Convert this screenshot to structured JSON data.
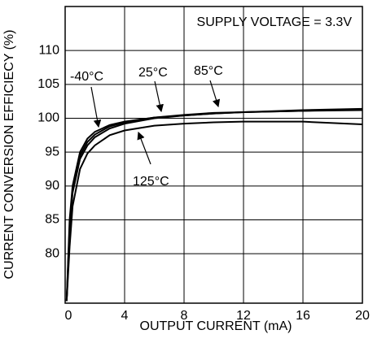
{
  "chart_data": {
    "type": "line",
    "xlabel": "OUTPUT CURRENT (mA)",
    "ylabel": "CURRENT CONVERSION EFFICIECY (%)",
    "annotations": [
      "SUPPLY VOLTAGE = 3.3V",
      "-40°C",
      "25°C",
      "85°C",
      "125°C"
    ],
    "x": [
      0.1,
      0.3,
      0.5,
      1,
      1.5,
      2,
      3,
      4,
      6,
      8,
      10,
      12,
      16,
      20
    ],
    "series": [
      {
        "name": "-40°C",
        "color": "#000000",
        "values": [
          73,
          85,
          90,
          95,
          97,
          98,
          99,
          99.5,
          100.1,
          100.4,
          100.7,
          100.9,
          101.1,
          101.2
        ]
      },
      {
        "name": "25°C",
        "color": "#000000",
        "values": [
          73,
          84,
          89.5,
          94.5,
          96.5,
          97.6,
          98.8,
          99.4,
          100.1,
          100.5,
          100.8,
          100.9,
          101.1,
          101.3
        ]
      },
      {
        "name": "85°C",
        "color": "#000000",
        "values": [
          73,
          83,
          89,
          94,
          96,
          97.2,
          98.5,
          99.2,
          100,
          100.4,
          100.7,
          100.9,
          101.2,
          101.4
        ]
      },
      {
        "name": "125°C",
        "color": "#000000",
        "values": [
          73,
          81,
          87,
          92.5,
          94.8,
          96,
          97.5,
          98.2,
          98.9,
          99.2,
          99.4,
          99.5,
          99.5,
          99.1
        ]
      }
    ],
    "xlim": [
      0,
      20
    ],
    "xticks": [
      0,
      4,
      8,
      12,
      16,
      20
    ],
    "ylim": [
      72.7,
      116.5
    ],
    "yticks": [
      80,
      85,
      90,
      95,
      100,
      105,
      110
    ],
    "grid": true
  }
}
